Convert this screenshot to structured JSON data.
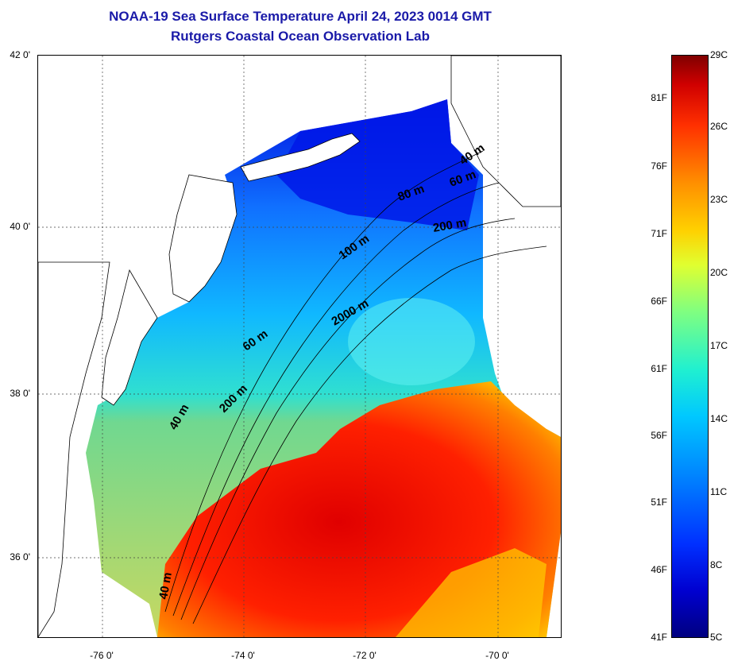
{
  "title": {
    "line1": "NOAA-19 Sea Surface Temperature April 24, 2023 0014 GMT",
    "line2": "Rutgers Coastal Ocean Observation Lab"
  },
  "axes": {
    "lat_labels": [
      "42 0'",
      "40 0'",
      "38 0'",
      "36 0'"
    ],
    "lon_labels": [
      "-76 0'",
      "-74 0'",
      "-72 0'",
      "-70 0'"
    ]
  },
  "contour_labels": {
    "c40_ne": "40 m",
    "c60_ne": "60 m",
    "c80_ne": "80 m",
    "c200_ne": "200 m",
    "c100": "100 m",
    "c2000": "2000 m",
    "c60_mid": "60 m",
    "c200_mid": "200 m",
    "c40_mid": "40 m",
    "c40_south": "40 m"
  },
  "colorbar": {
    "fahrenheit": [
      "81F",
      "76F",
      "71F",
      "66F",
      "61F",
      "56F",
      "51F",
      "46F",
      "41F"
    ],
    "celsius": [
      "29C",
      "26C",
      "23C",
      "20C",
      "17C",
      "14C",
      "11C",
      "8C",
      "5C"
    ],
    "min_c": 5,
    "max_c": 29
  }
}
